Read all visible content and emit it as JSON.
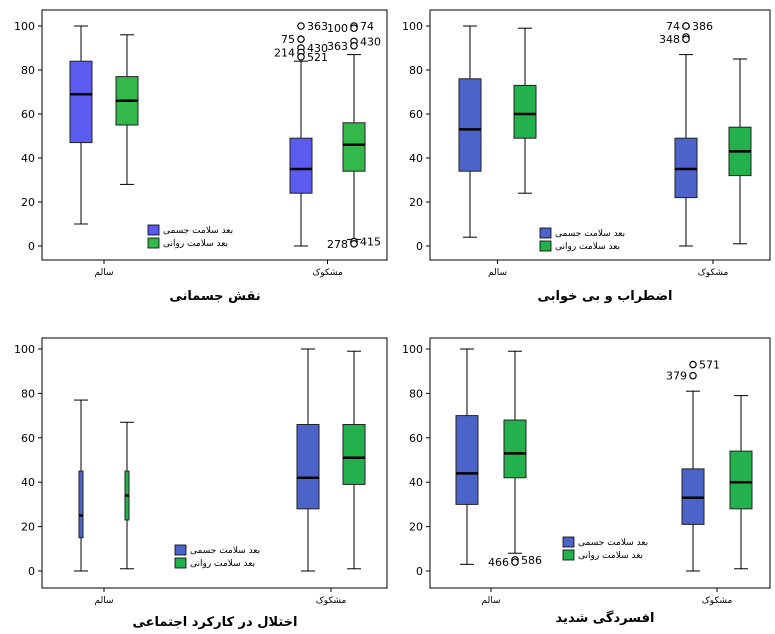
{
  "colors": {
    "physical": "#4c63c9",
    "mental": "#22b14c",
    "physical_top_left": "#5b5bf0",
    "mental_top_left": "#33b84a",
    "frame": "#000000"
  },
  "chart_data": [
    {
      "type": "box",
      "title": "نقش جسمانی",
      "categories": [
        "سالم",
        "مشکوک"
      ],
      "ylim": [
        0,
        100
      ],
      "yticks": [
        0,
        20,
        40,
        60,
        80,
        100
      ],
      "legend": {
        "position": "bottom-center",
        "entries": [
          "بعد سلامت جسمی",
          "بعد سلامت روانی"
        ]
      },
      "series": [
        {
          "name": "بعد سلامت جسمی",
          "boxes": [
            {
              "min": 10,
              "q1": 47,
              "median": 69,
              "q3": 84,
              "max": 100,
              "outliers": []
            },
            {
              "min": 0,
              "q1": 24,
              "median": 35,
              "q3": 49,
              "max": 84,
              "outliers": [
                {
                  "value": 100,
                  "label": "363"
                },
                {
                  "value": 94,
                  "label": "75"
                },
                {
                  "value": 90,
                  "label": "430"
                },
                {
                  "value": 88,
                  "label": "214"
                },
                {
                  "value": 86,
                  "label": "521"
                }
              ]
            }
          ]
        },
        {
          "name": "بعد سلامت روانی",
          "boxes": [
            {
              "min": 28,
              "q1": 55,
              "median": 66,
              "q3": 77,
              "max": 96,
              "outliers": []
            },
            {
              "min": 3,
              "q1": 34,
              "median": 46,
              "q3": 56,
              "max": 87,
              "outliers": [
                {
                  "value": 100,
                  "label": "74"
                },
                {
                  "value": 99,
                  "label": "100"
                },
                {
                  "value": 93,
                  "label": "430"
                },
                {
                  "value": 91,
                  "label": "363"
                },
                {
                  "value": 2,
                  "label": "415"
                },
                {
                  "value": 1,
                  "label": "278"
                }
              ]
            }
          ]
        }
      ]
    },
    {
      "type": "box",
      "title": "اضطراب و بی خوابی",
      "categories": [
        "سالم",
        "مشکوک"
      ],
      "ylim": [
        0,
        100
      ],
      "yticks": [
        0,
        20,
        40,
        60,
        80,
        100
      ],
      "legend": {
        "position": "bottom-center",
        "entries": [
          "بعد سلامت جسمی",
          "بعد سلامت روانی"
        ]
      },
      "series": [
        {
          "name": "بعد سلامت جسمی",
          "boxes": [
            {
              "min": 4,
              "q1": 34,
              "median": 53,
              "q3": 76,
              "max": 100,
              "outliers": []
            },
            {
              "min": 0,
              "q1": 22,
              "median": 35,
              "q3": 49,
              "max": 87,
              "outliers": [
                {
                  "value": 100,
                  "label": "386"
                },
                {
                  "value": 100,
                  "label": "74"
                },
                {
                  "value": 95,
                  "label": ""
                },
                {
                  "value": 94,
                  "label": "348"
                }
              ]
            }
          ]
        },
        {
          "name": "بعد سلامت روانی",
          "boxes": [
            {
              "min": 24,
              "q1": 49,
              "median": 60,
              "q3": 73,
              "max": 99,
              "outliers": []
            },
            {
              "min": 1,
              "q1": 32,
              "median": 43,
              "q3": 54,
              "max": 85,
              "outliers": []
            }
          ]
        }
      ]
    },
    {
      "type": "box",
      "title": "اختلال در کارکرد اجتماعی",
      "categories": [
        "سالم",
        "مشکوک"
      ],
      "ylim": [
        0,
        100
      ],
      "yticks": [
        0,
        20,
        40,
        60,
        80,
        100
      ],
      "legend": {
        "position": "bottom-center",
        "entries": [
          "بعد سلامت جسمی",
          "بعد سلامت روانی"
        ]
      },
      "series": [
        {
          "name": "بعد سلامت جسمی",
          "boxes": [
            {
              "min": 0,
              "q1": 15,
              "median": 25,
              "q3": 45,
              "max": 77,
              "outliers": [],
              "narrow": true
            },
            {
              "min": 0,
              "q1": 28,
              "median": 42,
              "q3": 66,
              "max": 100,
              "outliers": []
            }
          ]
        },
        {
          "name": "بعد سلامت روانی",
          "boxes": [
            {
              "min": 1,
              "q1": 23,
              "median": 34,
              "q3": 45,
              "max": 67,
              "outliers": [],
              "narrow": true
            },
            {
              "min": 1,
              "q1": 39,
              "median": 51,
              "q3": 66,
              "max": 99,
              "outliers": []
            }
          ]
        }
      ]
    },
    {
      "type": "box",
      "title": "افسردگی شدید",
      "categories": [
        "سالم",
        "مشکوک"
      ],
      "ylim": [
        0,
        100
      ],
      "yticks": [
        0,
        20,
        40,
        60,
        80,
        100
      ],
      "legend": {
        "position": "bottom-center",
        "entries": [
          "بعد سلامت جسمی",
          "بعد سلامت روانی"
        ]
      },
      "series": [
        {
          "name": "بعد سلامت جسمی",
          "boxes": [
            {
              "min": 3,
              "q1": 30,
              "median": 44,
              "q3": 70,
              "max": 100,
              "outliers": []
            },
            {
              "min": 0,
              "q1": 21,
              "median": 33,
              "q3": 46,
              "max": 81,
              "outliers": [
                {
                  "value": 93,
                  "label": "571"
                },
                {
                  "value": 88,
                  "label": "379"
                }
              ]
            }
          ]
        },
        {
          "name": "بعد سلامت روانی",
          "boxes": [
            {
              "min": 8,
              "q1": 42,
              "median": 53,
              "q3": 68,
              "max": 99,
              "outliers": [
                {
                  "value": 5,
                  "label": "586"
                },
                {
                  "value": 4,
                  "label": "466"
                }
              ]
            },
            {
              "min": 1,
              "q1": 28,
              "median": 40,
              "q3": 54,
              "max": 79,
              "outliers": []
            }
          ]
        }
      ]
    }
  ]
}
